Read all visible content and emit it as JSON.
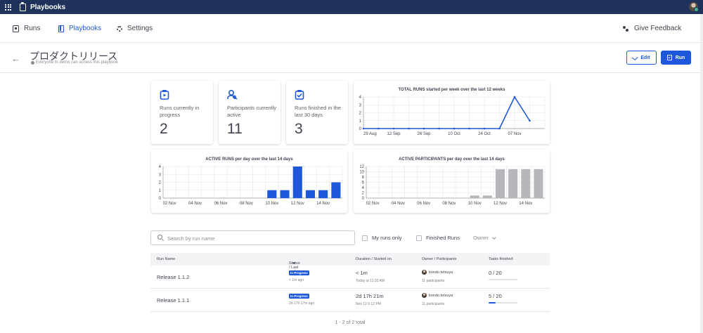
{
  "topbar": {
    "app_title": "Playbooks"
  },
  "nav": {
    "runs": "Runs",
    "playbooks": "Playbooks",
    "settings": "Settings",
    "feedback": "Give Feedback"
  },
  "header": {
    "title": "プロダクトリリース",
    "access_note": "Everyone in demo can access this playbook",
    "edit_label": "Edit",
    "run_label": "Run"
  },
  "stats": [
    {
      "label": "Runs currently in progress",
      "value": "2"
    },
    {
      "label": "Participants currently active",
      "value": "11"
    },
    {
      "label": "Runs finished in the last 30 days",
      "value": "3"
    }
  ],
  "chart_data": [
    {
      "type": "line",
      "title": "TOTAL RUNS started per week over the last 12 weeks",
      "x": [
        "29 Aug",
        "",
        "12 Sep",
        "",
        "26 Sep",
        "",
        "10 Oct",
        "",
        "24 Oct",
        "",
        "07 Nov",
        ""
      ],
      "values": [
        0,
        0,
        0,
        0,
        0,
        0,
        0,
        0,
        0,
        0,
        4,
        1
      ],
      "ylim": [
        0,
        4
      ],
      "yticks": [
        "4",
        "3",
        "2",
        "1",
        "0"
      ],
      "color": "#1c58d9",
      "grid": true
    },
    {
      "type": "bar",
      "title": "ACTIVE RUNS per day over the last 14 days",
      "categories": [
        "02 Nov",
        "",
        "04 Nov",
        "",
        "06 Nov",
        "",
        "08 Nov",
        "",
        "10 Nov",
        "",
        "12 Nov",
        "",
        "14 Nov",
        ""
      ],
      "values": [
        0,
        0,
        0,
        0,
        0,
        0,
        0,
        0,
        1,
        1,
        4,
        1,
        1,
        2
      ],
      "ylim": [
        0,
        4
      ],
      "yticks": [
        "4",
        "3",
        "2",
        "1",
        "0"
      ],
      "color": "#1c58d9",
      "grid": true
    },
    {
      "type": "bar",
      "title": "ACTIVE PARTICIPANTS per day over the last 14 days",
      "categories": [
        "02 Nov",
        "",
        "04 Nov",
        "",
        "06 Nov",
        "",
        "08 Nov",
        "",
        "10 Nov",
        "",
        "12 Nov",
        "",
        "14 Nov",
        ""
      ],
      "values": [
        0,
        0,
        0,
        0,
        0,
        0,
        0,
        0,
        1,
        1,
        11,
        11,
        11,
        11
      ],
      "ylim": [
        0,
        12
      ],
      "yticks": [
        "12",
        "10",
        "8",
        "6",
        "4",
        "2",
        "0"
      ],
      "color": "#b6b7bb",
      "grid": true
    }
  ],
  "filters": {
    "search_placeholder": "Search by run name",
    "my_runs": "My runs only",
    "finished_runs": "Finished Runs",
    "owner": "Owner"
  },
  "table": {
    "headers": {
      "run_name": "Run Name",
      "status": "Status / Last update",
      "duration": "Duration / Started on",
      "owner": "Owner / Participants",
      "tasks": "Tasks finished"
    },
    "rows": [
      {
        "name": "Release 1.1.2",
        "status": "In Progress",
        "last_update": "< 1m ago",
        "duration": "< 1m",
        "started": "Today at 11:33 AM",
        "owner": "kondo.tetsuya",
        "participants": "11 participants",
        "tasks": "0 / 20",
        "progress": 0
      },
      {
        "name": "Release 1.1.1",
        "status": "In Progress",
        "last_update": "2d 17h 17m ago",
        "duration": "2d 17h 21m",
        "started": "Nov 12 6:12 PM",
        "owner": "kondo.tetsuya",
        "participants": "11 participants",
        "tasks": "5 / 20",
        "progress": 0.25
      }
    ]
  },
  "pager": "1 - 2 of 2 total"
}
